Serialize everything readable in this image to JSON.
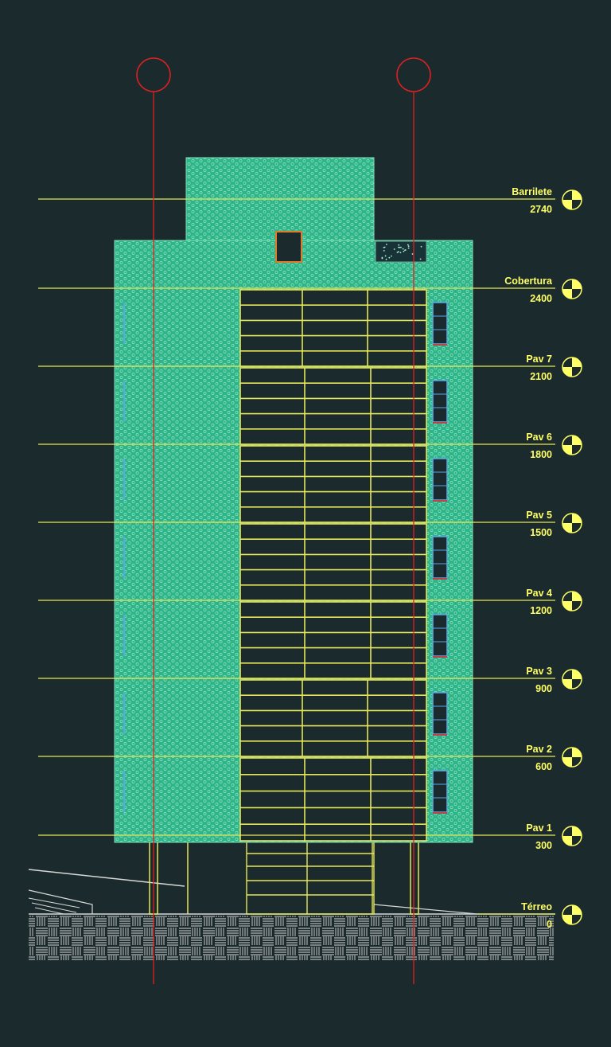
{
  "drawing": {
    "colors": {
      "background": "#1b2a2c",
      "facade": "#2fb489",
      "facade_pattern": "#7fe0b8",
      "level_line": "#e6e65a",
      "label": "#ffff66",
      "grid_axis": "#e02020",
      "window_frame": "#5aa6e6",
      "ground": "#d8d8d8"
    },
    "levels": [
      {
        "id": "barrilete",
        "name": "Barrilete",
        "elevation": "2740"
      },
      {
        "id": "cobertura",
        "name": "Cobertura",
        "elevation": "2400"
      },
      {
        "id": "pav7",
        "name": "Pav 7",
        "elevation": "2100"
      },
      {
        "id": "pav6",
        "name": "Pav 6",
        "elevation": "1800"
      },
      {
        "id": "pav5",
        "name": "Pav 5",
        "elevation": "1500"
      },
      {
        "id": "pav4",
        "name": "Pav 4",
        "elevation": "1200"
      },
      {
        "id": "pav3",
        "name": "Pav 3",
        "elevation": "900"
      },
      {
        "id": "pav2",
        "name": "Pav 2",
        "elevation": "600"
      },
      {
        "id": "pav1",
        "name": "Pav 1",
        "elevation": "300"
      },
      {
        "id": "terreo",
        "name": "Térreo",
        "elevation": "0"
      }
    ]
  }
}
